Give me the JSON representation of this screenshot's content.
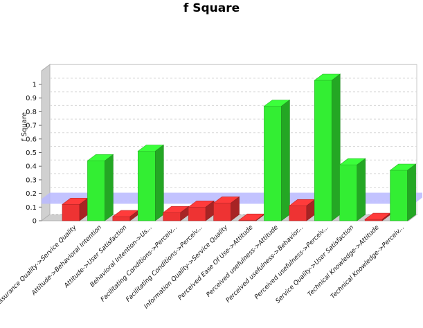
{
  "chart_data": {
    "type": "bar",
    "title": "f Square",
    "xlabel": "",
    "ylabel": "f Square",
    "ylim": [
      0,
      1.1
    ],
    "yticks": [
      "0",
      "0.1",
      "0.2",
      "0.3",
      "0.4",
      "0.5",
      "0.6",
      "0.7",
      "0.8",
      "0.9",
      "1"
    ],
    "threshold": 0.15,
    "grid": true,
    "categories": [
      "Assurance Quality->Service Quality",
      "Attitude->Behavioral Intention",
      "Attitude->User Satisfaction",
      "Behavioral Intention->Us...",
      "Facilitating Conditions->Perceiv...",
      "Facilitating Conditions->Perceiv...",
      "Information Quality->Service Quality",
      "Perceived Ease Of Use->Attitude",
      "Perceived usefulness->Attitude",
      "Perceived usefulness->Behavior...",
      "Perceived usefulness->Perceiv...",
      "Service Quality->User Satisfaction",
      "Technical Knowledge->Attitude",
      "Technical Knowledge->Perceiv..."
    ],
    "values": [
      0.12,
      0.44,
      0.03,
      0.51,
      0.06,
      0.1,
      0.13,
      0.0,
      0.84,
      0.11,
      1.03,
      0.41,
      0.01,
      0.37
    ],
    "colors": {
      "above": "#33ee33",
      "below": "#ee3333",
      "threshold_band": "#b8b8ff",
      "grid": "#d8d8d8"
    }
  }
}
